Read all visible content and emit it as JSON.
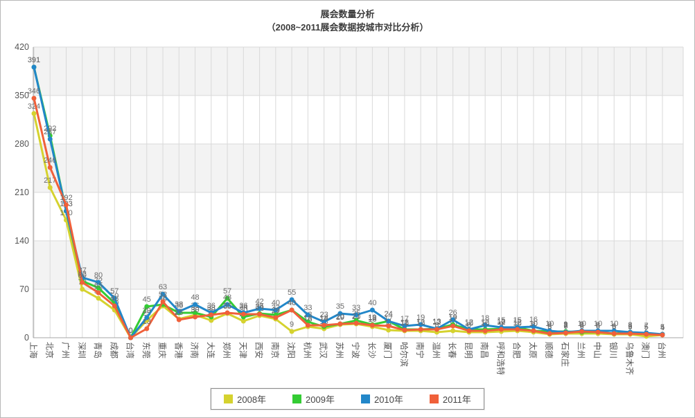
{
  "chart_data": {
    "type": "line",
    "title": "展会数量分析",
    "subtitle": "（2008~2011展会数据按城市对比分析）",
    "xlabel": "",
    "ylabel": "",
    "ylim": [
      0,
      420
    ],
    "yticks": [
      0,
      70,
      140,
      210,
      280,
      350,
      420
    ],
    "grid": true,
    "legend_position": "bottom",
    "categories": [
      "上海",
      "北京",
      "广州",
      "深圳",
      "青岛",
      "成都",
      "台湾",
      "东莞",
      "重庆",
      "香港",
      "济南",
      "大连",
      "郑州",
      "天津",
      "西安",
      "南京",
      "沈阳",
      "杭州",
      "武汉",
      "苏州",
      "宁波",
      "长沙",
      "厦门",
      "哈尔滨",
      "南宁",
      "温州",
      "长春",
      "昆明",
      "南昌",
      "呼和浩特",
      "合肥",
      "太原",
      "顺德",
      "石家庄",
      "兰州",
      "中山",
      "银川",
      "乌鲁木齐",
      "澳门",
      "台州"
    ],
    "series": [
      {
        "name": "2008年",
        "color": "#d5d22f",
        "values": [
          324,
          217,
          170,
          70,
          57,
          40,
          0,
          25,
          46,
          27,
          33,
          25,
          35,
          24,
          32,
          27,
          9,
          16,
          13,
          19,
          20,
          16,
          11,
          10,
          10,
          8,
          10,
          8,
          8,
          9,
          10,
          8,
          5,
          6,
          6,
          6,
          5,
          5,
          2,
          4
        ]
      },
      {
        "name": "2009年",
        "color": "#33cc33",
        "values": [
          391,
          292,
          183,
          82,
          72,
          50,
          0,
          45,
          48,
          36,
          36,
          30,
          57,
          30,
          35,
          33,
          40,
          23,
          16,
          20,
          25,
          19,
          24,
          12,
          12,
          13,
          19,
          12,
          12,
          13,
          15,
          10,
          9,
          9,
          8,
          8,
          6,
          8,
          5,
          5
        ]
      },
      {
        "name": "2010年",
        "color": "#2287c9",
        "values": [
          391,
          287,
          183,
          87,
          80,
          57,
          0,
          29,
          63,
          38,
          48,
          36,
          48,
          36,
          42,
          40,
          55,
          33,
          23,
          35,
          33,
          40,
          24,
          17,
          19,
          13,
          26,
          12,
          18,
          15,
          15,
          16,
          10,
          8,
          10,
          10,
          10,
          8,
          7,
          5
        ]
      },
      {
        "name": "2011年",
        "color": "#f0603a",
        "values": [
          346,
          246,
          192,
          80,
          65,
          46,
          0,
          13,
          52,
          26,
          30,
          33,
          36,
          34,
          34,
          29,
          40,
          18,
          18,
          20,
          21,
          18,
          17,
          11,
          12,
          12,
          17,
          10,
          10,
          12,
          12,
          10,
          6,
          7,
          9,
          8,
          6,
          6,
          5,
          4
        ]
      }
    ],
    "colors": {
      "band": "#f3f3f3",
      "gridline": "#d9d9d9",
      "axis": "#a6a6a6",
      "tick_text": "#555555",
      "value_label": "#6b6b6b"
    }
  }
}
